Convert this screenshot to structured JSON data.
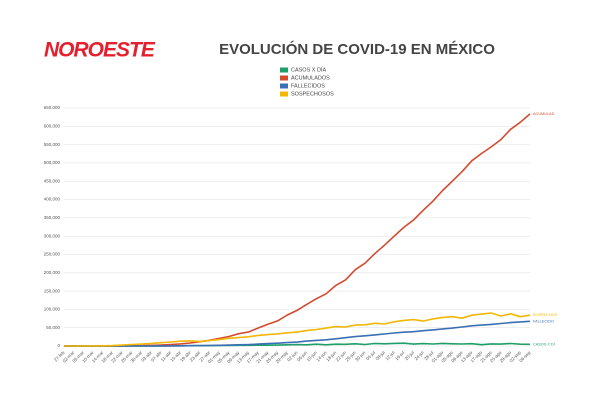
{
  "logo": "NOROESTE",
  "chart_data": {
    "type": "line",
    "title": "EVOLUCIÓN DE COVID-19 EN MÉXICO",
    "legend": "top",
    "grid": true,
    "categories": [
      "27-feb",
      "02-mar",
      "06-mar",
      "10-mar",
      "14-mar",
      "18-mar",
      "22-mar",
      "26-mar",
      "30-mar",
      "03-abr",
      "07-abr",
      "11-abr",
      "15-abr",
      "19-abr",
      "23-abr",
      "27-abr",
      "01-may",
      "05-may",
      "09-may",
      "13-may",
      "17-may",
      "21-may",
      "25-may",
      "29-may",
      "02-jun",
      "06-jun",
      "10-jun",
      "14-jun",
      "18-jun",
      "22-jun",
      "26-jun",
      "30-jun",
      "04-jul",
      "08-jul",
      "12-jul",
      "16-jul",
      "20-jul",
      "24-jul",
      "28-jul",
      "01-ago",
      "05-ago",
      "09-ago",
      "13-ago",
      "17-ago",
      "21-ago",
      "25-ago",
      "29-ago",
      "02-sep",
      "06-sep"
    ],
    "series": [
      {
        "name": "CASOS X DÍA",
        "end_label": "CASOS X DÍ",
        "color": "#1f9e6b",
        "values": [
          1,
          0,
          0,
          2,
          15,
          25,
          65,
          110,
          160,
          200,
          400,
          450,
          500,
          700,
          900,
          1100,
          1500,
          1400,
          1900,
          1800,
          2400,
          2200,
          2500,
          3300,
          3900,
          3200,
          4900,
          3400,
          5000,
          4600,
          6100,
          4200,
          6700,
          6100,
          7000,
          7600,
          5300,
          6600,
          5500,
          7000,
          6100,
          5400,
          6400,
          3600,
          5800,
          5200,
          6700,
          4800,
          4700
        ]
      },
      {
        "name": "ACUMULADOS",
        "end_label": "ACUMULAD",
        "color": "#d34a2f",
        "values": [
          1,
          5,
          5,
          7,
          26,
          118,
          316,
          585,
          1094,
          1690,
          2785,
          4219,
          5847,
          8261,
          11633,
          15529,
          20739,
          26025,
          33460,
          38324,
          49219,
          59567,
          68620,
          84627,
          97326,
          113619,
          129184,
          142690,
          165455,
          180545,
          208392,
          226089,
          252165,
          275003,
          299750,
          324041,
          344224,
          370712,
          395489,
          424637,
          449961,
          475902,
          505751,
          525733,
          543806,
          563705,
          591712,
          610957,
          634023
        ]
      },
      {
        "name": "FALLECIDOS",
        "end_label": "FALLECIDO",
        "color": "#3a6fb3",
        "values": [
          0,
          0,
          0,
          0,
          0,
          0,
          2,
          8,
          28,
          60,
          141,
          273,
          449,
          794,
          1069,
          1434,
          1972,
          2507,
          3353,
          3926,
          5177,
          6510,
          7633,
          9415,
          10637,
          13511,
          15357,
          16872,
          19747,
          22584,
          25779,
          27769,
          30366,
          32796,
          35491,
          37574,
          39184,
          41908,
          44022,
          46688,
          48869,
          52006,
          55293,
          57023,
          59106,
          61450,
          63819,
          65816,
          67558
        ]
      },
      {
        "name": "SOSPECHOSOS",
        "end_label": "SOSPECHOS",
        "color": "#f2b705",
        "values": [
          50,
          100,
          150,
          300,
          600,
          1200,
          2500,
          4000,
          5500,
          7000,
          9000,
          11000,
          13000,
          14000,
          12500,
          15000,
          17500,
          21000,
          23000,
          25000,
          29000,
          31000,
          33000,
          36000,
          38000,
          42000,
          45000,
          49000,
          53000,
          52000,
          57000,
          58000,
          62000,
          60000,
          66000,
          70000,
          72000,
          68000,
          74000,
          78000,
          80000,
          76000,
          84000,
          87000,
          90000,
          82000,
          88000,
          80000,
          84000
        ]
      }
    ],
    "ylim": [
      0,
      650000
    ],
    "yticks": [
      0,
      {
        "value": 50000,
        "label": "50,000"
      },
      {
        "value": 100000,
        "label": "100,000"
      },
      {
        "value": 150000,
        "label": "150,000"
      },
      {
        "value": 200000,
        "label": "200,000"
      },
      {
        "value": 250000,
        "label": "250,000"
      },
      {
        "value": 300000,
        "label": "300,000"
      },
      {
        "value": 350000,
        "label": "350,000"
      },
      {
        "value": 400000,
        "label": "400,000"
      },
      {
        "value": 450000,
        "label": "450,000"
      },
      {
        "value": 500000,
        "label": "500,000"
      },
      {
        "value": 550000,
        "label": "550,000"
      },
      {
        "value": 600000,
        "label": "600,000"
      },
      {
        "value": 650000,
        "label": "650,000"
      }
    ]
  }
}
